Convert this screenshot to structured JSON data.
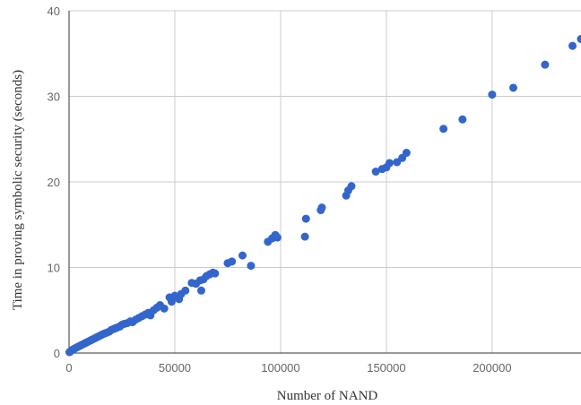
{
  "chart_data": {
    "type": "scatter",
    "xlabel": "Number of NAND",
    "ylabel": "Time in proving symbolic security (seconds)",
    "xlim": [
      0,
      242000
    ],
    "ylim": [
      0,
      40
    ],
    "x_ticks": [
      "0",
      "50000",
      "100000",
      "150000",
      "200000"
    ],
    "y_ticks": [
      "0",
      "10",
      "20",
      "30",
      "40"
    ],
    "grid": true,
    "legend": "none",
    "point_color": "#3366cc",
    "series": [
      {
        "x": [
          200,
          700,
          1200,
          1800,
          2500,
          3200,
          4000,
          4800,
          5600,
          6400,
          7200,
          8000,
          8800,
          9600,
          10400,
          11200,
          12000,
          12800,
          13600,
          14400,
          15200,
          16000,
          17000,
          18000,
          19000,
          20000,
          21000,
          22000,
          23000,
          24000,
          25000,
          26000,
          27500,
          29000,
          30000,
          31500,
          33000,
          34500,
          36000,
          37500,
          38500,
          40000,
          41500,
          43000,
          45000,
          47500,
          48500,
          50000,
          52000,
          53000,
          55000,
          58000,
          60000,
          62000,
          62500,
          63500,
          65000,
          66500,
          68000,
          69000,
          75000,
          77000,
          82000,
          86000,
          94000,
          96000,
          97500,
          98500,
          111500,
          112000,
          119000,
          119500,
          131000,
          132000,
          133500,
          145000,
          148000,
          150000,
          151500,
          155000,
          157500,
          159500,
          177000,
          186000,
          200000,
          210000,
          225000,
          238000,
          242000
        ],
        "y": [
          0.1,
          0.2,
          0.3,
          0.4,
          0.5,
          0.6,
          0.7,
          0.8,
          0.9,
          1.0,
          1.1,
          1.2,
          1.3,
          1.4,
          1.5,
          1.6,
          1.7,
          1.8,
          1.9,
          2.0,
          2.1,
          2.2,
          2.3,
          2.4,
          2.5,
          2.7,
          2.8,
          2.9,
          3.0,
          3.1,
          3.3,
          3.4,
          3.5,
          3.7,
          3.6,
          3.9,
          4.1,
          4.3,
          4.5,
          4.7,
          4.4,
          5.0,
          5.3,
          5.6,
          5.2,
          6.5,
          6.0,
          6.7,
          6.3,
          6.9,
          7.3,
          8.2,
          8.1,
          8.5,
          7.3,
          8.6,
          9.0,
          9.2,
          9.4,
          9.3,
          10.5,
          10.7,
          11.4,
          10.2,
          13.0,
          13.4,
          13.8,
          13.5,
          13.6,
          15.7,
          16.7,
          17.0,
          18.4,
          19.0,
          19.5,
          21.2,
          21.5,
          21.7,
          22.2,
          22.3,
          22.8,
          23.4,
          26.2,
          27.3,
          30.2,
          31.0,
          33.7,
          35.9,
          36.7
        ]
      }
    ]
  }
}
